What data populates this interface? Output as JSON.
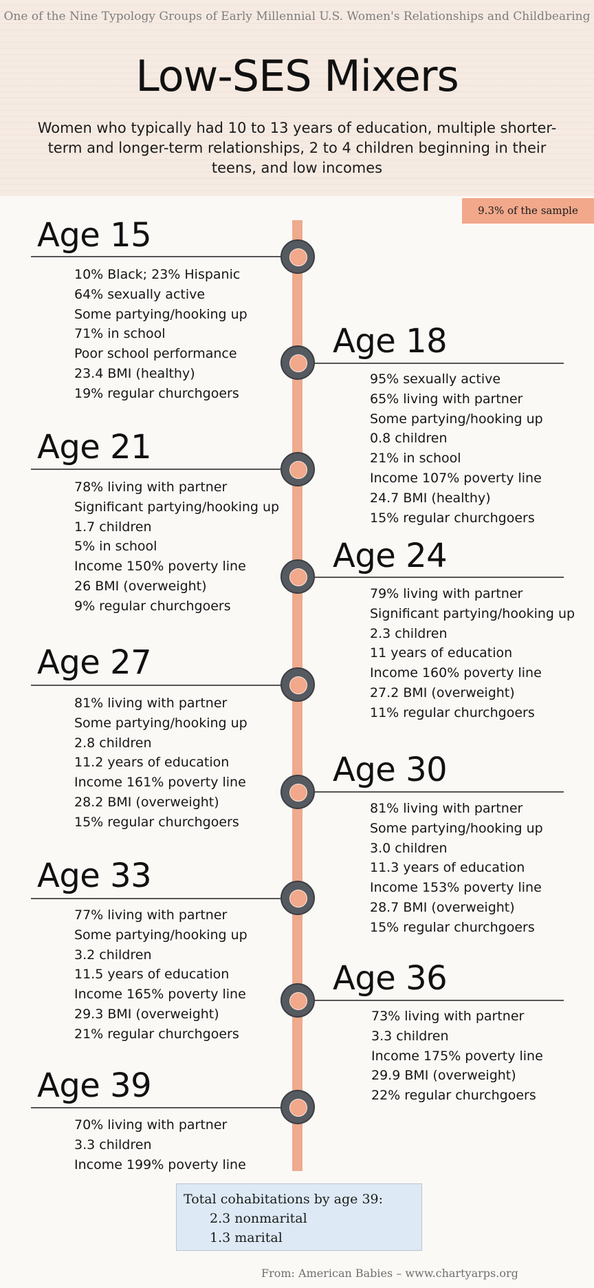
{
  "header": {
    "group_caption": "One of the Nine Typology Groups of Early Millennial U.S. Women's Relationships and Childbearing",
    "title": "Low-SES Mixers",
    "description": "Women who typically had 10 to 13 years of education, multiple shorter-term and longer-term relationships, 2 to 4 children beginning in their teens, and low incomes"
  },
  "sample_share": "9.3% of the sample",
  "colors": {
    "accent": "#f1a88b",
    "spine": "#eeab8e",
    "node": "#555a60",
    "header_bg": "#f6ebe3",
    "totals_bg": "#dde9f5"
  },
  "stages": [
    {
      "label": "Age 15",
      "side": "left",
      "facts": [
        "10% Black; 23% Hispanic",
        "64% sexually active",
        "Some partying/hooking up",
        "71% in school",
        "Poor school performance",
        "23.4 BMI (healthy)",
        "19% regular churchgoers"
      ]
    },
    {
      "label": "Age 18",
      "side": "right",
      "facts": [
        "95% sexually active",
        "65% living with partner",
        "Some partying/hooking up",
        "0.8 children",
        "21% in school",
        "Income 107% poverty line",
        "24.7 BMI (healthy)",
        "15% regular churchgoers"
      ]
    },
    {
      "label": "Age 21",
      "side": "left",
      "facts": [
        "78% living with partner",
        "Significant partying/hooking up",
        "1.7 children",
        "5% in school",
        "Income 150% poverty line",
        "26 BMI (overweight)",
        "9% regular churchgoers"
      ]
    },
    {
      "label": "Age 24",
      "side": "right",
      "facts": [
        "79% living with partner",
        "Significant partying/hooking up",
        "2.3 children",
        "11 years of education",
        "Income 160% poverty line",
        "27.2 BMI (overweight)",
        "11% regular churchgoers"
      ]
    },
    {
      "label": "Age 27",
      "side": "left",
      "facts": [
        "81% living with partner",
        "Some partying/hooking up",
        "2.8 children",
        "11.2 years of education",
        "Income 161% poverty line",
        "28.2 BMI (overweight)",
        "15% regular churchgoers"
      ]
    },
    {
      "label": "Age 30",
      "side": "right",
      "facts": [
        "81% living with partner",
        "Some partying/hooking up",
        "3.0 children",
        "11.3 years of education",
        "Income 153% poverty line",
        "28.7 BMI (overweight)",
        "15% regular churchgoers"
      ]
    },
    {
      "label": "Age 33",
      "side": "left",
      "facts": [
        "77% living with partner",
        "Some partying/hooking up",
        "3.2 children",
        "11.5 years of education",
        "Income 165% poverty line",
        "29.3 BMI (overweight)",
        "21% regular churchgoers"
      ]
    },
    {
      "label": "Age 36",
      "side": "right",
      "facts": [
        "73% living with partner",
        "3.3 children",
        "Income 175% poverty line",
        "29.9 BMI (overweight)",
        "22% regular churchgoers"
      ]
    },
    {
      "label": "Age 39",
      "side": "left",
      "facts": [
        "70% living with partner",
        "3.3 children",
        "Income 199% poverty line"
      ]
    }
  ],
  "totals": {
    "heading": "Total cohabitations by age 39:",
    "nonmarital": "2.3 nonmarital",
    "marital": "1.3 marital"
  },
  "source": "From: American Babies – www.chartyarps.org"
}
